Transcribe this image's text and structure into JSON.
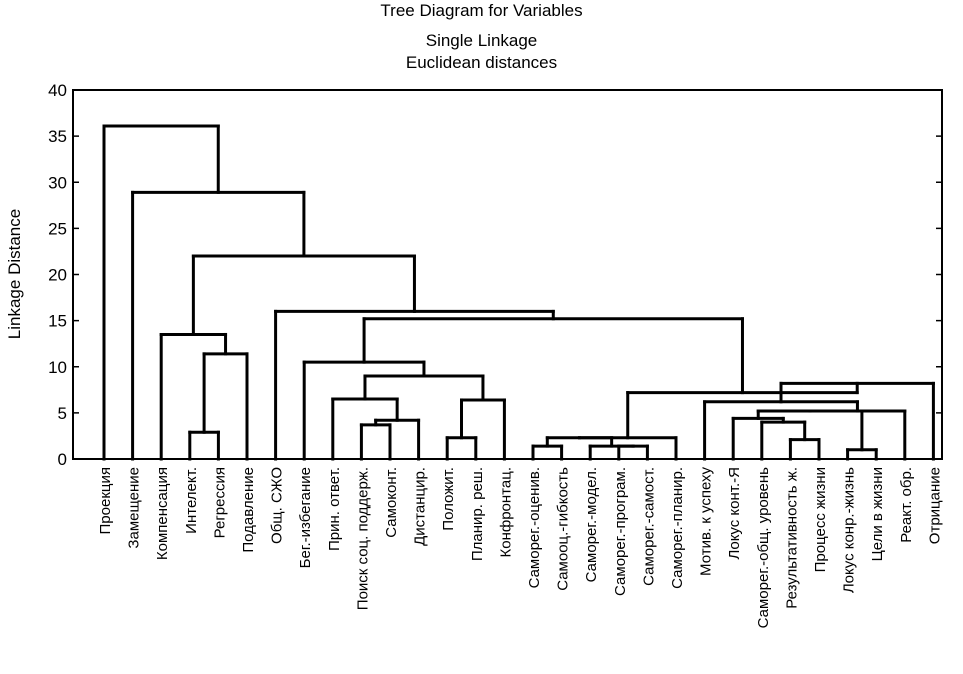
{
  "chart_data": {
    "type": "dendrogram",
    "title": "Tree Diagram for  Variables",
    "subtitle": "Single Linkage",
    "subtitle2": "Euclidean distances",
    "xlabel": "",
    "ylabel": "Linkage Distance",
    "ylim": [
      0,
      40
    ],
    "yticks": [
      0,
      5,
      10,
      15,
      20,
      25,
      30,
      35,
      40
    ],
    "grid": false,
    "leaves": [
      "Проекция",
      "Замещение",
      "Компенсация",
      "Интелект.",
      "Регрессия",
      "Подавление",
      "Общ. СЖО",
      "Бег.-избегание",
      "Прин. ответ.",
      "Поиск соц. поддерж.",
      "Самоконт.",
      "Дистанцир.",
      "Положит.",
      "Планир. реш.",
      "Конфронтац.",
      "Саморег.-оценив.",
      "Самооц.-гибкость",
      "Саморег.-модел.",
      "Саморег.-програм.",
      "Саморег.-самост.",
      "Саморег.-планир.",
      "Мотив. к успеху",
      "Локус конт.-Я",
      "Саморег.-общ. уровень",
      "Результативность ж.",
      "Процесс жизни",
      "Локус конр.-жизнь",
      "Цели в жизни",
      "Реакт. обр.",
      "Отрицание"
    ],
    "merges": [
      {
        "left": 15,
        "right": 16,
        "height": 1.4
      },
      {
        "left": 18,
        "right": 19,
        "height": 1.4
      },
      {
        "left": 17,
        "right": 1001,
        "height": 1.4
      },
      {
        "left": 1000,
        "right": 1002,
        "height": 2.3
      },
      {
        "left": 12,
        "right": 13,
        "height": 2.3
      },
      {
        "left": 3,
        "right": 4,
        "height": 2.9
      },
      {
        "left": 9,
        "right": 10,
        "height": 3.7
      },
      {
        "left": 26,
        "right": 27,
        "height": 1.0
      },
      {
        "left": 24,
        "right": 25,
        "height": 2.1
      },
      {
        "left": 23,
        "right": 1008,
        "height": 4.0
      },
      {
        "left": 22,
        "right": 1009,
        "height": 4.4
      },
      {
        "left": 1010,
        "right": 1007,
        "height": 5.2
      },
      {
        "left": 1011,
        "right": 28,
        "height": 5.2
      },
      {
        "left": 21,
        "right": 1012,
        "height": 6.2
      },
      {
        "left": 1013,
        "right": 29,
        "height": 8.2
      },
      {
        "left": 20,
        "right": 1003,
        "height": 2.3
      },
      {
        "left": 1015,
        "right": 1014,
        "height": 7.2
      },
      {
        "left": 1004,
        "right": 14,
        "height": 6.4
      },
      {
        "left": 1006,
        "right": 11,
        "height": 4.2
      },
      {
        "left": 8,
        "right": 1018,
        "height": 6.5
      },
      {
        "left": 1019,
        "right": 1017,
        "height": 9.0
      },
      {
        "left": 7,
        "right": 1020,
        "height": 10.5
      },
      {
        "left": 1021,
        "right": 1016,
        "height": 15.2
      },
      {
        "left": 6,
        "right": 1022,
        "height": 16.0
      },
      {
        "left": 1005,
        "right": 5,
        "height": 11.4
      },
      {
        "left": 2,
        "right": 1024,
        "height": 13.5
      },
      {
        "left": 1025,
        "right": 1023,
        "height": 22.0
      },
      {
        "left": 1,
        "right": 1026,
        "height": 28.9
      },
      {
        "left": 0,
        "right": 1027,
        "height": 36.1
      }
    ]
  }
}
